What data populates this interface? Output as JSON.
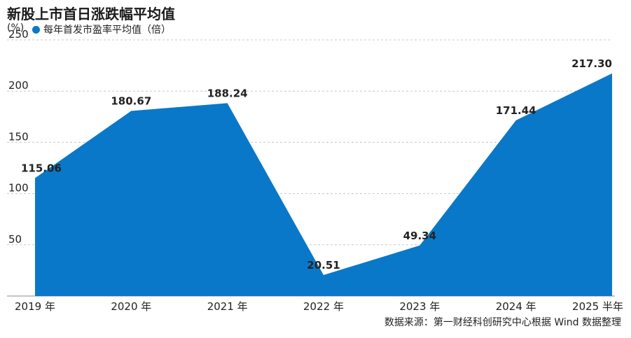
{
  "title": "新股上市首日涨跌幅平均值",
  "unit": "(%)",
  "source": "数据来源：第一财经科创研究中心根据 Wind 数据整理",
  "chart_data": {
    "type": "area",
    "title": "新股上市首日涨跌幅平均值",
    "ylabel": "(%)",
    "ylim": [
      0,
      250
    ],
    "yticks": [
      50,
      100,
      150,
      200,
      250
    ],
    "grid": true,
    "legend_position": "top-left",
    "categories": [
      "2019 年",
      "2020 年",
      "2021 年",
      "2022 年",
      "2023 年",
      "2024 年",
      "2025 半年"
    ],
    "series": [
      {
        "name": "每年首发市盈率平均值（倍）",
        "color": "#0a78c8",
        "values": [
          115.06,
          180.67,
          188.24,
          20.51,
          49.34,
          171.44,
          217.3
        ],
        "labels": [
          "115.06",
          "180.67",
          "188.24",
          "20.51",
          "49.34",
          "171.44",
          "217.30"
        ]
      }
    ]
  }
}
